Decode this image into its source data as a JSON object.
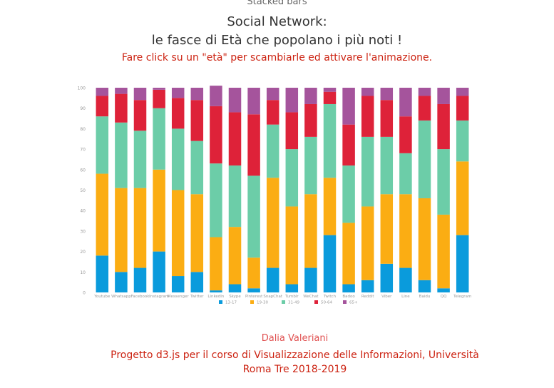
{
  "header": {
    "top_label": "Stacked bars",
    "title_line1": "Social Network:",
    "title_line2": "le fasce di Età che popolano i più noti !",
    "subtitle": "Fare click su un \"età\" per scambiarle ed attivare l'animazione.",
    "accent_color": "#cc2211"
  },
  "footer": {
    "author": "Dalia Valeriani",
    "project_line1": "Progetto d3.js per il corso di Visualizzazione delle Informazioni, Università",
    "project_line2": "Roma Tre 2018-2019",
    "author_color": "#e05050",
    "project_color": "#cc2211"
  },
  "chart_data": {
    "type": "bar",
    "stacked": true,
    "ylim": [
      0,
      100
    ],
    "yticks": [
      0,
      10,
      20,
      30,
      40,
      50,
      60,
      70,
      80,
      90,
      100
    ],
    "grid": false,
    "legend_position": "bottom",
    "categories": [
      "Youtube",
      "Whatsapp",
      "Facebook",
      "Instagram",
      "Messenger",
      "Twitter",
      "LinkedIn",
      "Skype",
      "Pinterest",
      "SnapChat",
      "Tumblr",
      "WeChat",
      "Twitch",
      "Badoo",
      "Reddit",
      "Viber",
      "Line",
      "Baidu",
      "QQ",
      "Telegram"
    ],
    "series": [
      {
        "name": "13-17",
        "color": "#0a9bdc",
        "values": [
          18,
          10,
          12,
          20,
          8,
          10,
          1,
          4,
          2,
          12,
          4,
          12,
          28,
          4,
          6,
          14,
          12,
          6,
          2,
          28
        ]
      },
      {
        "name": "19-30",
        "color": "#fbad13",
        "values": [
          40,
          41,
          39,
          40,
          42,
          38,
          26,
          28,
          15,
          44,
          38,
          36,
          28,
          30,
          36,
          34,
          36,
          40,
          36,
          36
        ]
      },
      {
        "name": "31-49",
        "color": "#6ccda8",
        "values": [
          28,
          32,
          28,
          30,
          30,
          26,
          36,
          30,
          40,
          26,
          28,
          28,
          36,
          28,
          34,
          28,
          20,
          38,
          32,
          20
        ]
      },
      {
        "name": "50-64",
        "color": "#de2239",
        "values": [
          10,
          14,
          15,
          9,
          15,
          20,
          28,
          26,
          30,
          12,
          18,
          16,
          6,
          20,
          20,
          18,
          18,
          12,
          22,
          12
        ]
      },
      {
        "name": "65+",
        "color": "#a5549c",
        "values": [
          4,
          3,
          6,
          1,
          5,
          6,
          10,
          12,
          13,
          6,
          12,
          8,
          2,
          18,
          4,
          6,
          14,
          4,
          8,
          4
        ]
      }
    ]
  }
}
